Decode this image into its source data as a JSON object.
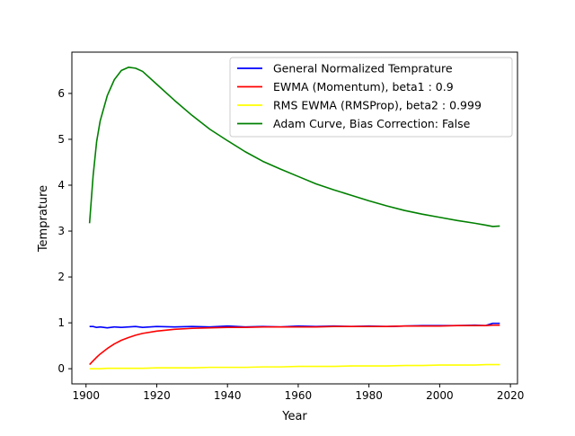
{
  "chart_data": {
    "type": "line",
    "title": "",
    "xlabel": "Year",
    "ylabel": "Temprature",
    "xlim": [
      1896,
      2022
    ],
    "ylim": [
      -0.33,
      6.9
    ],
    "xticks": [
      1900,
      1920,
      1940,
      1960,
      1980,
      2000,
      2020
    ],
    "yticks": [
      0,
      1,
      2,
      3,
      4,
      5,
      6
    ],
    "grid": false,
    "legend_position": "top-right",
    "x": [
      1901,
      1902,
      1903,
      1904,
      1906,
      1908,
      1910,
      1912,
      1914,
      1916,
      1920,
      1925,
      1930,
      1935,
      1940,
      1945,
      1950,
      1955,
      1960,
      1965,
      1970,
      1975,
      1980,
      1985,
      1990,
      1995,
      2000,
      2005,
      2010,
      2013,
      2015,
      2017
    ],
    "series": [
      {
        "name": "General Normalized Temprature",
        "color": "#0000ff",
        "values": [
          0.92,
          0.92,
          0.9,
          0.91,
          0.89,
          0.91,
          0.9,
          0.91,
          0.92,
          0.9,
          0.92,
          0.91,
          0.92,
          0.91,
          0.93,
          0.91,
          0.92,
          0.91,
          0.93,
          0.92,
          0.93,
          0.92,
          0.93,
          0.92,
          0.93,
          0.94,
          0.94,
          0.94,
          0.95,
          0.94,
          0.99,
          0.99
        ]
      },
      {
        "name": "EWMA (Momentum), beta1 : 0.9",
        "color": "#ff0000",
        "values": [
          0.09,
          0.17,
          0.25,
          0.32,
          0.44,
          0.54,
          0.62,
          0.68,
          0.73,
          0.77,
          0.82,
          0.86,
          0.88,
          0.89,
          0.9,
          0.9,
          0.91,
          0.91,
          0.91,
          0.91,
          0.92,
          0.92,
          0.92,
          0.92,
          0.93,
          0.93,
          0.93,
          0.94,
          0.94,
          0.94,
          0.95,
          0.95
        ]
      },
      {
        "name": "RMS EWMA (RMSProp), beta2 : 0.999",
        "color": "#ffff00",
        "values": [
          0.0,
          0.0,
          0.0,
          0.0,
          0.01,
          0.01,
          0.01,
          0.01,
          0.01,
          0.01,
          0.02,
          0.02,
          0.02,
          0.03,
          0.03,
          0.03,
          0.04,
          0.04,
          0.05,
          0.05,
          0.05,
          0.06,
          0.06,
          0.06,
          0.07,
          0.07,
          0.08,
          0.08,
          0.08,
          0.09,
          0.09,
          0.09
        ]
      },
      {
        "name": "Adam Curve, Bias Correction: False",
        "color": "#008000",
        "values": [
          3.17,
          4.2,
          4.95,
          5.4,
          5.95,
          6.3,
          6.5,
          6.57,
          6.55,
          6.48,
          6.2,
          5.85,
          5.52,
          5.22,
          4.97,
          4.73,
          4.52,
          4.35,
          4.19,
          4.03,
          3.9,
          3.78,
          3.66,
          3.55,
          3.45,
          3.37,
          3.3,
          3.23,
          3.17,
          3.13,
          3.1,
          3.11
        ]
      }
    ]
  }
}
